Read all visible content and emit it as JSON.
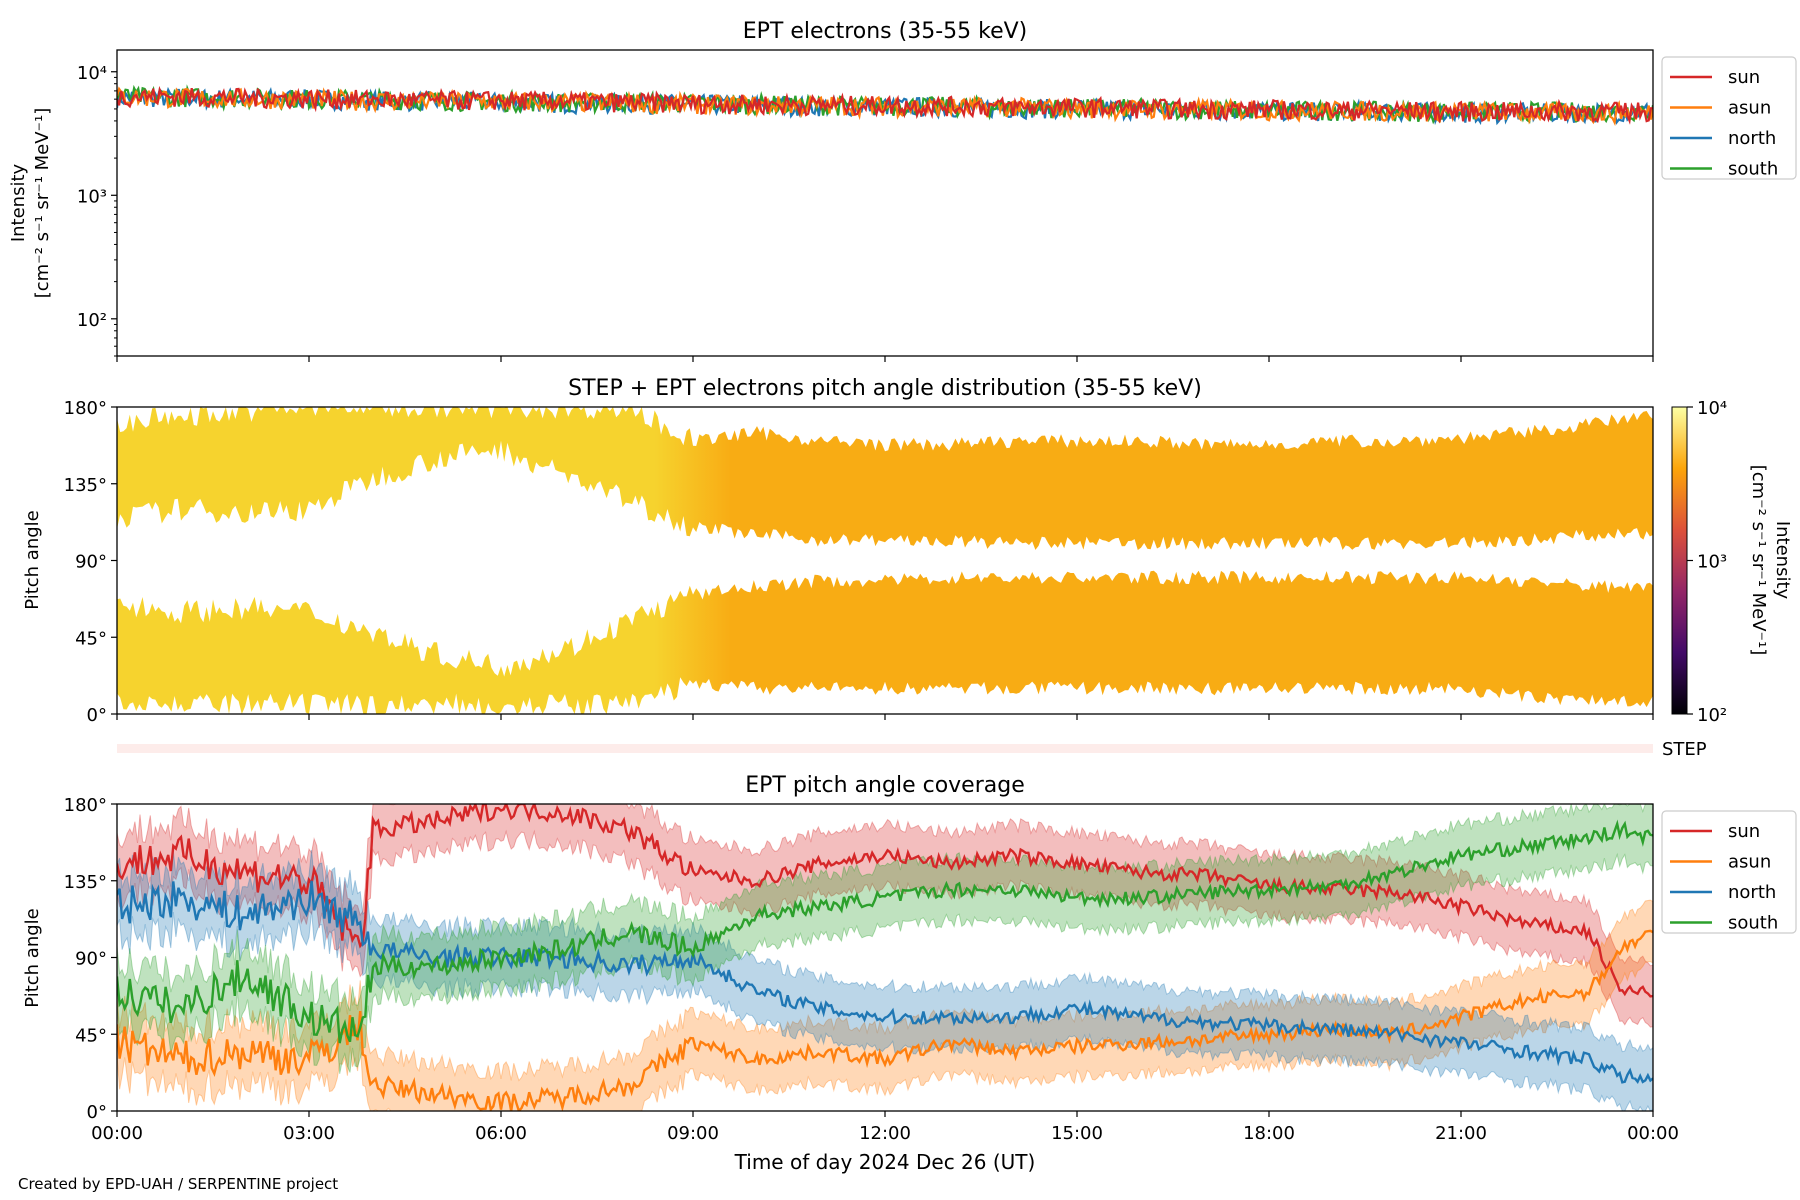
{
  "footer": "Created by EPD-UAH / SERPENTINE project",
  "xaxis": {
    "label": "Time of day 2024 Dec 26 (UT)",
    "ticks": [
      "00:00",
      "03:00",
      "06:00",
      "09:00",
      "12:00",
      "15:00",
      "18:00",
      "21:00",
      "00:00"
    ],
    "range_hours": [
      0,
      24
    ]
  },
  "chart_data": [
    {
      "type": "line",
      "title": "EPT electrons (35-55 keV)",
      "ylabel": [
        "Intensity",
        "[cm⁻² s⁻¹ sr⁻¹ MeV⁻¹]"
      ],
      "yscale": "log",
      "ylim": [
        50,
        15000
      ],
      "yticks": [
        "10⁴",
        "10³",
        "10²"
      ],
      "ytick_values": [
        10000,
        1000,
        100
      ],
      "legend_position": "right",
      "x_hours": [
        0,
        1,
        2,
        3,
        4,
        5,
        6,
        7,
        8,
        9,
        10,
        11,
        12,
        13,
        14,
        15,
        16,
        17,
        18,
        19,
        20,
        21,
        22,
        23,
        24
      ],
      "series": [
        {
          "name": "sun",
          "color": "#d62728",
          "values": [
            6400,
            6300,
            6200,
            6100,
            6000,
            5900,
            5900,
            5800,
            5700,
            5600,
            5500,
            5400,
            5400,
            5300,
            5200,
            5200,
            5100,
            5000,
            5000,
            4900,
            4900,
            4800,
            4800,
            4800,
            4800
          ]
        },
        {
          "name": "asun",
          "color": "#ff7f0e",
          "values": [
            6300,
            6200,
            6100,
            6000,
            5900,
            5800,
            5800,
            5700,
            5600,
            5500,
            5400,
            5400,
            5300,
            5200,
            5200,
            5100,
            5000,
            5000,
            4900,
            4900,
            4800,
            4800,
            4700,
            4700,
            4700
          ]
        },
        {
          "name": "north",
          "color": "#1f77b4",
          "values": [
            6200,
            6200,
            6100,
            6100,
            5900,
            5800,
            5700,
            5600,
            5600,
            5500,
            5400,
            5300,
            5300,
            5200,
            5100,
            5100,
            5000,
            4900,
            4900,
            4800,
            4800,
            4700,
            4700,
            4700,
            4800
          ]
        },
        {
          "name": "south",
          "color": "#2ca02c",
          "values": [
            6300,
            6300,
            6200,
            6100,
            6000,
            5900,
            5800,
            5700,
            5700,
            5600,
            5500,
            5400,
            5300,
            5300,
            5200,
            5100,
            5100,
            5000,
            4900,
            4900,
            4800,
            4800,
            4800,
            4800,
            4900
          ]
        }
      ]
    },
    {
      "type": "heatmap",
      "title": "STEP + EPT electrons pitch angle distribution (35-55 keV)",
      "ylabel": "Pitch angle",
      "ylim": [
        0,
        180
      ],
      "yticks": [
        "180°",
        "135°",
        "90°",
        "45°",
        "0°"
      ],
      "ytick_values": [
        180,
        135,
        90,
        45,
        0
      ],
      "colorbar": {
        "label": [
          "Intensity",
          "[cm⁻² s⁻¹ sr⁻¹ MeV⁻¹]"
        ],
        "ticks": [
          "10⁴",
          "10³",
          "10²"
        ],
        "tick_values": [
          10000,
          1000,
          100
        ],
        "colormap": "inferno",
        "colormap_stops": [
          "#000004",
          "#420a68",
          "#932667",
          "#dd513a",
          "#fca50a",
          "#fcffa4"
        ]
      },
      "fill_colors": {
        "early": "#f6d32e",
        "late": "#f8ac14"
      },
      "x_hours": [
        0,
        1,
        2,
        3,
        4,
        5,
        6,
        7,
        8,
        9,
        10,
        11,
        12,
        13,
        14,
        15,
        16,
        17,
        18,
        19,
        20,
        21,
        22,
        23,
        24
      ],
      "bands": [
        {
          "name": "upper",
          "bottom": [
            115,
            120,
            118,
            120,
            138,
            150,
            155,
            140,
            125,
            110,
            105,
            102,
            102,
            101,
            100,
            100,
            100,
            100,
            100,
            100,
            100,
            100,
            102,
            105,
            105
          ],
          "top": [
            170,
            175,
            178,
            180,
            180,
            180,
            180,
            180,
            180,
            160,
            165,
            160,
            158,
            158,
            160,
            160,
            160,
            158,
            158,
            160,
            160,
            162,
            165,
            170,
            175
          ]
        },
        {
          "name": "lower",
          "bottom": [
            10,
            5,
            5,
            5,
            5,
            5,
            5,
            5,
            5,
            18,
            15,
            15,
            15,
            15,
            15,
            15,
            15,
            15,
            15,
            15,
            15,
            15,
            10,
            8,
            8
          ],
          "top": [
            65,
            60,
            62,
            60,
            48,
            35,
            28,
            38,
            55,
            70,
            75,
            78,
            78,
            80,
            80,
            80,
            80,
            80,
            80,
            80,
            80,
            80,
            78,
            75,
            75
          ]
        }
      ]
    },
    {
      "type": "bar",
      "title": "",
      "label": "STEP"
    },
    {
      "type": "area",
      "title": "EPT pitch angle coverage",
      "ylabel": "Pitch angle",
      "ylim": [
        0,
        180
      ],
      "yticks": [
        "180°",
        "135°",
        "90°",
        "45°",
        "0°"
      ],
      "ytick_values": [
        180,
        135,
        90,
        45,
        0
      ],
      "legend_position": "right",
      "x_hours": [
        0,
        1,
        2,
        3,
        3.8,
        4,
        5,
        6,
        7,
        8,
        9,
        10,
        11,
        12,
        13,
        14,
        15,
        16,
        17,
        18,
        19,
        20,
        21,
        22,
        23,
        23.5,
        24
      ],
      "series": [
        {
          "name": "sun",
          "color": "#d62728",
          "band_half_width": 18,
          "values": [
            145,
            150,
            140,
            135,
            95,
            165,
            170,
            178,
            175,
            165,
            140,
            135,
            145,
            150,
            145,
            150,
            145,
            140,
            138,
            132,
            130,
            128,
            120,
            110,
            105,
            70,
            70
          ]
        },
        {
          "name": "asun",
          "color": "#ff7f0e",
          "band_half_width": 18,
          "values": [
            40,
            30,
            35,
            30,
            50,
            15,
            10,
            5,
            8,
            15,
            40,
            30,
            35,
            30,
            40,
            35,
            38,
            40,
            42,
            45,
            48,
            45,
            55,
            65,
            70,
            95,
            105
          ]
        },
        {
          "name": "north",
          "color": "#1f77b4",
          "band_half_width": 18,
          "values": [
            120,
            125,
            115,
            125,
            110,
            95,
            90,
            90,
            90,
            85,
            90,
            70,
            60,
            55,
            55,
            55,
            60,
            55,
            52,
            50,
            48,
            45,
            40,
            35,
            30,
            20,
            20
          ]
        },
        {
          "name": "south",
          "color": "#2ca02c",
          "band_half_width": 18,
          "values": [
            70,
            60,
            80,
            55,
            45,
            85,
            85,
            90,
            95,
            105,
            95,
            115,
            120,
            125,
            130,
            130,
            125,
            125,
            128,
            130,
            132,
            140,
            150,
            155,
            160,
            165,
            160
          ]
        }
      ]
    }
  ]
}
